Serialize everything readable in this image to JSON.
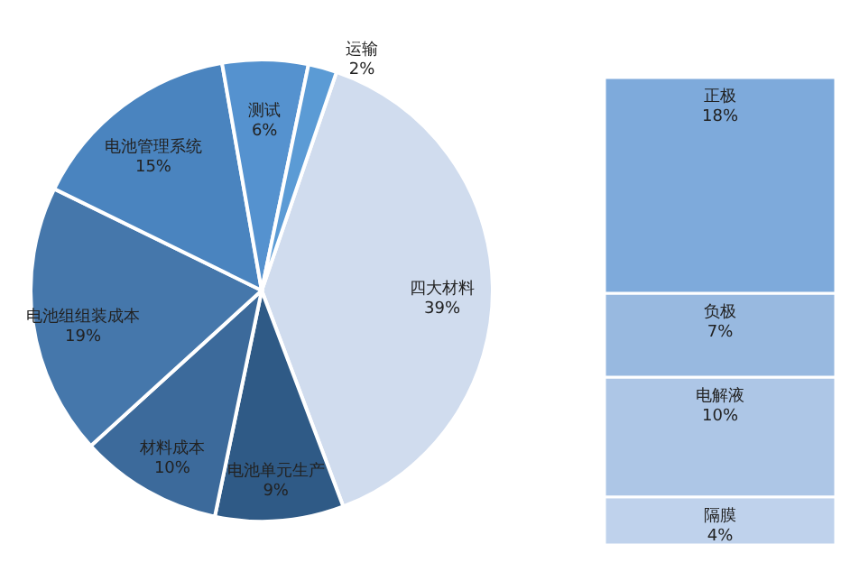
{
  "chart_data": [
    {
      "type": "pie",
      "categories": [
        "四大材料",
        "电池单元生产",
        "材料成本",
        "电池组组装成本",
        "电池管理系统",
        "测试",
        "运输"
      ],
      "values": [
        39,
        9,
        10,
        19,
        15,
        6,
        2
      ],
      "value_labels": [
        "39%",
        "9%",
        "10%",
        "19%",
        "15%",
        "6%",
        "2%"
      ],
      "colors": [
        "#d0dcee",
        "#2f5a86",
        "#3c6a9b",
        "#4577ab",
        "#4a84bf",
        "#5592cf",
        "#5b9bd5"
      ]
    },
    {
      "type": "bar",
      "stacked": true,
      "categories": [
        null
      ],
      "series": [
        {
          "name": "隔膜",
          "color": "#bfd2ec",
          "values": [
            4
          ],
          "value_labels": [
            "4%"
          ]
        },
        {
          "name": "电解液",
          "color": "#adc6e6",
          "values": [
            10
          ],
          "value_labels": [
            "10%"
          ]
        },
        {
          "name": "负极",
          "color": "#98b9e0",
          "values": [
            7
          ],
          "value_labels": [
            "7%"
          ]
        },
        {
          "name": "正极",
          "color": "#7eaadb",
          "values": [
            18
          ],
          "value_labels": [
            "18%"
          ]
        }
      ]
    }
  ]
}
